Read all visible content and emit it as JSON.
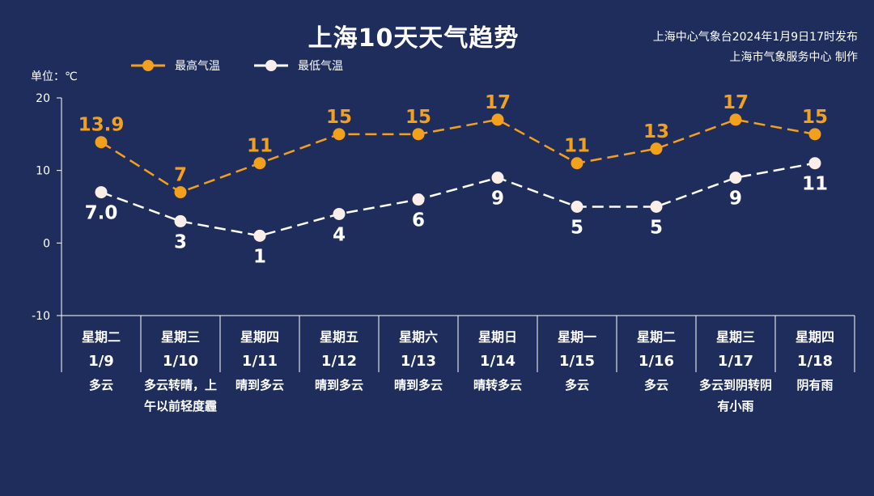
{
  "header": {
    "title": "上海10天天气趋势",
    "publisher_line1": "上海中心气象台2024年1月9日17时发布",
    "publisher_line2": "上海市气象服务中心 制作"
  },
  "unit_label": "单位：℃",
  "colors": {
    "background": "#1f2d5c",
    "high": "#f3a01c",
    "low": "#ffffff",
    "axis": "#ffffff"
  },
  "chart_data": {
    "type": "line",
    "ylim": [
      -10,
      20
    ],
    "y_ticks": [
      "20",
      "10",
      "0",
      "-10"
    ],
    "y_tick_values": [
      20,
      10,
      0,
      -10
    ],
    "categories": [
      {
        "weekday": "星期二",
        "date": "1/9",
        "condition": "多云"
      },
      {
        "weekday": "星期三",
        "date": "1/10",
        "condition": "多云转晴，上午以前轻度霾"
      },
      {
        "weekday": "星期四",
        "date": "1/11",
        "condition": "晴到多云"
      },
      {
        "weekday": "星期五",
        "date": "1/12",
        "condition": "晴到多云"
      },
      {
        "weekday": "星期六",
        "date": "1/13",
        "condition": "晴到多云"
      },
      {
        "weekday": "星期日",
        "date": "1/14",
        "condition": "晴转多云"
      },
      {
        "weekday": "星期一",
        "date": "1/15",
        "condition": "多云"
      },
      {
        "weekday": "星期二",
        "date": "1/16",
        "condition": "多云"
      },
      {
        "weekday": "星期三",
        "date": "1/17",
        "condition": "多云到阴转阴有小雨"
      },
      {
        "weekday": "星期四",
        "date": "1/18",
        "condition": "阴有雨"
      }
    ],
    "series": [
      {
        "name": "最高气温",
        "color": "#f3a01c",
        "values": [
          13.9,
          7,
          11,
          15,
          15,
          17,
          11,
          13,
          17,
          15
        ],
        "labels": [
          "13.9",
          "7",
          "11",
          "15",
          "15",
          "17",
          "11",
          "13",
          "17",
          "15"
        ]
      },
      {
        "name": "最低气温",
        "color": "#ffffff",
        "values": [
          7.0,
          3,
          1,
          4,
          6,
          9,
          5,
          5,
          9,
          11
        ],
        "labels": [
          "7.0",
          "3",
          "1",
          "4",
          "6",
          "9",
          "5",
          "5",
          "9",
          "11"
        ]
      }
    ],
    "line_style": "dashed",
    "grid": false
  }
}
